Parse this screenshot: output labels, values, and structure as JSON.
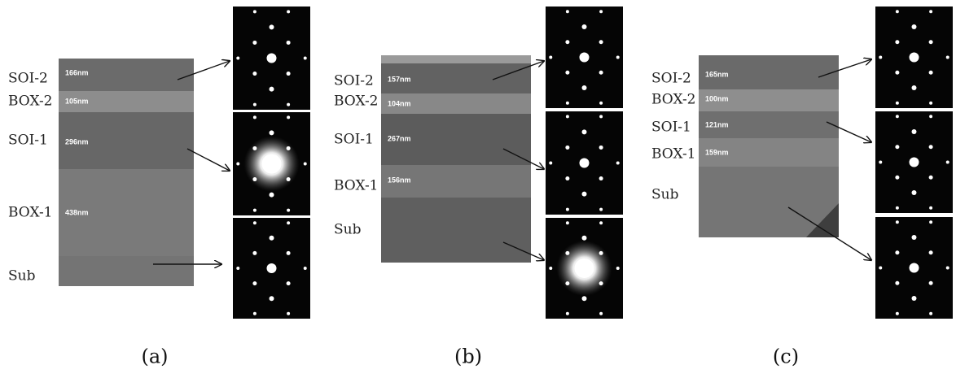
{
  "panels": [
    {
      "caption": "(a)",
      "layers": [
        {
          "name": "SOI-2",
          "thickness": "166nm"
        },
        {
          "name": "BOX-2",
          "thickness": "105nm"
        },
        {
          "name": "SOI-1",
          "thickness": "296nm"
        },
        {
          "name": "BOX-1",
          "thickness": "438nm"
        },
        {
          "name": "Sub"
        }
      ]
    },
    {
      "caption": "(b)",
      "layers": [
        {
          "name": "SOI-2",
          "thickness": "157nm"
        },
        {
          "name": "BOX-2",
          "thickness": "104nm"
        },
        {
          "name": "SOI-1",
          "thickness": "267nm"
        },
        {
          "name": "BOX-1",
          "thickness": "156nm"
        },
        {
          "name": "Sub"
        }
      ]
    },
    {
      "caption": "(c)",
      "layers": [
        {
          "name": "SOI-2",
          "thickness": "165nm"
        },
        {
          "name": "BOX-2",
          "thickness": "100nm"
        },
        {
          "name": "SOI-1",
          "thickness": "121nm"
        },
        {
          "name": "BOX-1",
          "thickness": "159nm"
        },
        {
          "name": "Sub"
        }
      ]
    }
  ]
}
